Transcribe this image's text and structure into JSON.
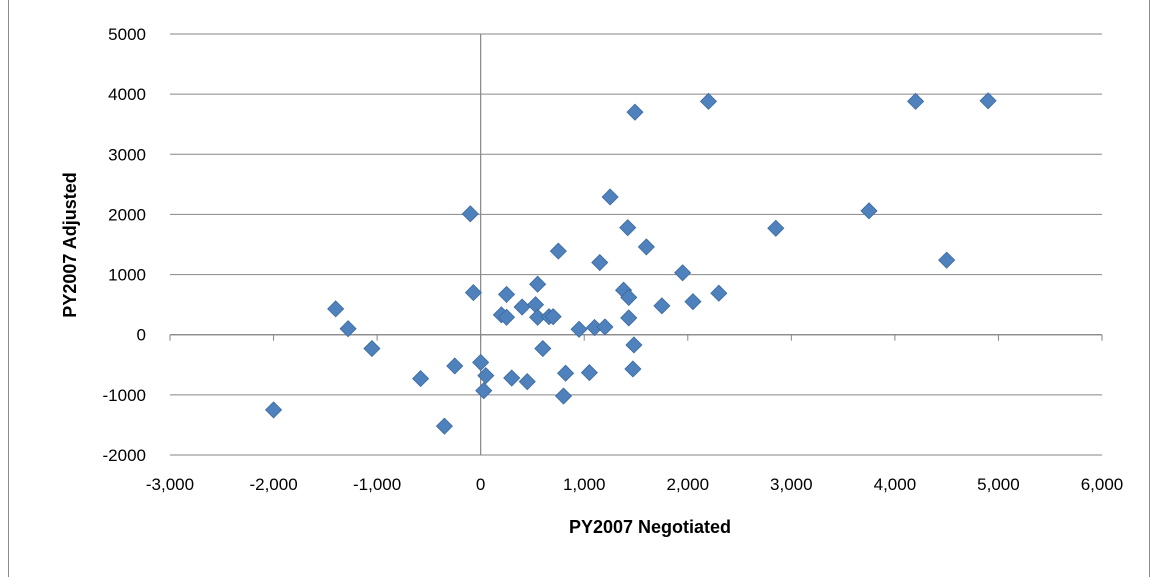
{
  "chart_data": {
    "type": "scatter",
    "xlabel": "PY2007 Negotiated",
    "ylabel": "PY2007  Adjusted",
    "xlim": [
      -3000,
      6000
    ],
    "ylim": [
      -2000,
      5000
    ],
    "x_ticks": [
      -3000,
      -2000,
      -1000,
      0,
      1000,
      2000,
      3000,
      4000,
      5000,
      6000
    ],
    "y_ticks": [
      -2000,
      -1000,
      0,
      1000,
      2000,
      3000,
      4000,
      5000
    ],
    "x_tick_labels": [
      "-3,000",
      "-2,000",
      "-1,000",
      "0",
      "1,000",
      "2,000",
      "3,000",
      "4,000",
      "5,000",
      "6,000"
    ],
    "y_tick_labels": [
      "-2000",
      "-1000",
      "0",
      "1000",
      "2000",
      "3000",
      "4000",
      "5000"
    ],
    "grid": "horizontal",
    "legend": "none",
    "marker": "diamond",
    "marker_color": "#4f81bd",
    "series": [
      {
        "points": [
          [
            -2000,
            -1250
          ],
          [
            -1400,
            430
          ],
          [
            -1280,
            100
          ],
          [
            -1050,
            -230
          ],
          [
            -580,
            -730
          ],
          [
            -350,
            -1520
          ],
          [
            -250,
            -520
          ],
          [
            -100,
            2010
          ],
          [
            -70,
            700
          ],
          [
            0,
            -460
          ],
          [
            30,
            -930
          ],
          [
            50,
            -680
          ],
          [
            200,
            330
          ],
          [
            250,
            670
          ],
          [
            250,
            290
          ],
          [
            300,
            -720
          ],
          [
            400,
            460
          ],
          [
            450,
            -780
          ],
          [
            530,
            500
          ],
          [
            550,
            840
          ],
          [
            550,
            290
          ],
          [
            600,
            -230
          ],
          [
            660,
            300
          ],
          [
            700,
            300
          ],
          [
            750,
            1390
          ],
          [
            800,
            -1020
          ],
          [
            820,
            -640
          ],
          [
            950,
            90
          ],
          [
            1050,
            -630
          ],
          [
            1100,
            120
          ],
          [
            1150,
            1200
          ],
          [
            1200,
            130
          ],
          [
            1250,
            2290
          ],
          [
            1380,
            740
          ],
          [
            1420,
            1780
          ],
          [
            1430,
            620
          ],
          [
            1430,
            280
          ],
          [
            1470,
            -570
          ],
          [
            1480,
            -170
          ],
          [
            1490,
            3700
          ],
          [
            1600,
            1460
          ],
          [
            1750,
            480
          ],
          [
            1950,
            1030
          ],
          [
            2050,
            550
          ],
          [
            2200,
            3880
          ],
          [
            2300,
            690
          ],
          [
            2850,
            1770
          ],
          [
            3750,
            2060
          ],
          [
            4200,
            3880
          ],
          [
            4500,
            1240
          ],
          [
            4900,
            3890
          ]
        ]
      }
    ]
  }
}
